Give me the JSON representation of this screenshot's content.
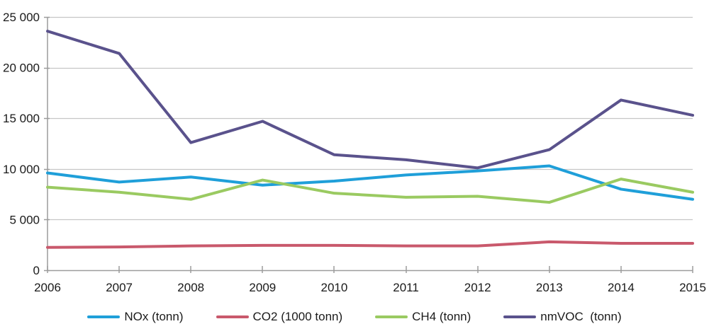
{
  "chart_data": {
    "type": "line",
    "title": "",
    "categories": [
      "2006",
      "2007",
      "2008",
      "2009",
      "2010",
      "2011",
      "2012",
      "2013",
      "2014",
      "2015"
    ],
    "series": [
      {
        "name": "NOx (tonn)",
        "color": "#1f9fd9",
        "values": [
          9600,
          8700,
          9200,
          8400,
          8800,
          9400,
          9800,
          10300,
          8000,
          7000
        ]
      },
      {
        "name": "CO2 (1000 tonn)",
        "color": "#c9596c",
        "values": [
          2250,
          2300,
          2400,
          2450,
          2450,
          2400,
          2400,
          2800,
          2650,
          2650
        ]
      },
      {
        "name": "CH4 (tonn)",
        "color": "#9aca61",
        "values": [
          8200,
          7700,
          7000,
          8900,
          7600,
          7200,
          7300,
          6700,
          9000,
          7700
        ]
      },
      {
        "name": "nmVOC  (tonn)",
        "color": "#5a528c",
        "values": [
          23600,
          21400,
          12600,
          14700,
          11400,
          10900,
          10100,
          11900,
          16800,
          15300
        ]
      }
    ],
    "xlabel": "",
    "ylabel": "",
    "ylim": [
      0,
      25000
    ],
    "ytick_interval": 5000,
    "ytick_labels": [
      "0",
      "5 000",
      "10 000",
      "15 000",
      "20 000",
      "25 000"
    ],
    "grid": "horizontal",
    "legend_position": "bottom-center"
  },
  "style": {
    "background": "#ffffff",
    "grid_color": "#c6c6c6",
    "axis_color": "#9c9c9c",
    "text_color": "#1a1a1a",
    "line_width": 4
  }
}
